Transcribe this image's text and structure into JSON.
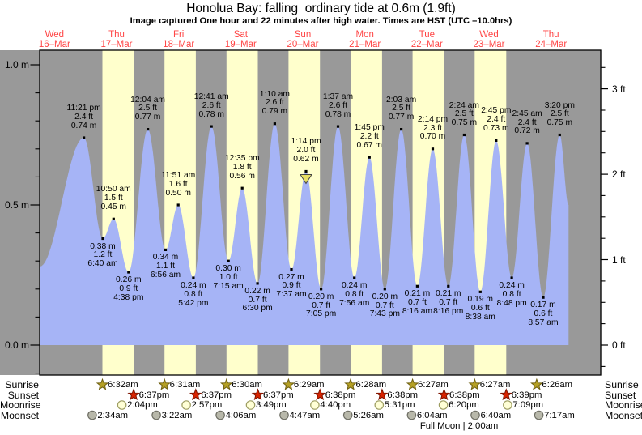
{
  "title": "Honolua Bay: falling  ordinary tide at 0.6m (1.9ft)",
  "subtitle": "Image captured One hour and 22 minutes after high water. Times are HST (UTC –10.0hrs)",
  "colors": {
    "night_band": "#999999",
    "daylight_band": "#ffffcc",
    "tide_fill": "#a6b4f6",
    "day_label": "#ff4646",
    "sunrise_star": "#b5a024",
    "sunrise_star_stroke": "#6e5f10",
    "sunset_star": "#d92300",
    "sunset_star_stroke": "#7c1400",
    "moonrise_circle": "#ffffd6",
    "moonrise_circle_stroke": "#9d9d62",
    "moonset_circle": "#b8b8aa",
    "moonset_circle_stroke": "#6f6f65",
    "marker_fill": "#e8df63"
  },
  "chart_data": {
    "type": "area",
    "title": "Honolua Bay: falling  ordinary tide at 0.6m (1.9ft)",
    "subtitle": "Image captured One hour and 22 minutes after high water. Times are HST (UTC –10.0hrs)",
    "y_axis_left": {
      "unit": "m",
      "labels": [
        "1.0 m",
        "0.5 m",
        "0.0 m"
      ],
      "values": [
        1.0,
        0.5,
        0.0
      ],
      "minor_step": 0.1
    },
    "y_axis_right": {
      "unit": "ft",
      "labels": [
        "3 ft",
        "2 ft",
        "1 ft",
        "0 ft"
      ],
      "values": [
        3,
        2,
        1,
        0
      ],
      "minor_step": 0.25
    },
    "grid": false,
    "days": [
      {
        "weekday": "Wed",
        "date": "16–Mar"
      },
      {
        "weekday": "Thu",
        "date": "17–Mar"
      },
      {
        "weekday": "Fri",
        "date": "18–Mar"
      },
      {
        "weekday": "Sat",
        "date": "19–Mar"
      },
      {
        "weekday": "Sun",
        "date": "20–Mar"
      },
      {
        "weekday": "Mon",
        "date": "21–Mar"
      },
      {
        "weekday": "Tue",
        "date": "22–Mar"
      },
      {
        "weekday": "Wed",
        "date": "23–Mar"
      },
      {
        "weekday": "Thu",
        "date": "24–Mar"
      }
    ],
    "tide_events": [
      {
        "type": "high",
        "day": 0,
        "time": "11:21 pm",
        "ft": "2.4 ft",
        "m": "0.74 m",
        "value_m": 0.74
      },
      {
        "type": "low",
        "day": 1,
        "time": "6:40 am",
        "ft": "1.2 ft",
        "m": "0.38 m",
        "value_m": 0.38
      },
      {
        "type": "high",
        "day": 1,
        "time": "10:50 am",
        "ft": "1.5 ft",
        "m": "0.45 m",
        "value_m": 0.45
      },
      {
        "type": "low",
        "day": 1,
        "time": "4:38 pm",
        "ft": "0.9 ft",
        "m": "0.26 m",
        "value_m": 0.26
      },
      {
        "type": "high",
        "day": 2,
        "time": "12:04 am",
        "ft": "2.5 ft",
        "m": "0.77 m",
        "value_m": 0.77
      },
      {
        "type": "low",
        "day": 2,
        "time": "6:56 am",
        "ft": "1.1 ft",
        "m": "0.34 m",
        "value_m": 0.34
      },
      {
        "type": "high",
        "day": 2,
        "time": "11:51 am",
        "ft": "1.6 ft",
        "m": "0.50 m",
        "value_m": 0.5
      },
      {
        "type": "low",
        "day": 2,
        "time": "5:42 pm",
        "ft": "0.8 ft",
        "m": "0.24 m",
        "value_m": 0.24
      },
      {
        "type": "high",
        "day": 3,
        "time": "12:41 am",
        "ft": "2.6 ft",
        "m": "0.78 m",
        "value_m": 0.78
      },
      {
        "type": "low",
        "day": 3,
        "time": "7:15 am",
        "ft": "1.0 ft",
        "m": "0.30 m",
        "value_m": 0.3
      },
      {
        "type": "high",
        "day": 3,
        "time": "12:35 pm",
        "ft": "1.8 ft",
        "m": "0.56 m",
        "value_m": 0.56
      },
      {
        "type": "low",
        "day": 3,
        "time": "6:30 pm",
        "ft": "0.7 ft",
        "m": "0.22 m",
        "value_m": 0.22
      },
      {
        "type": "high",
        "day": 4,
        "time": "1:10 am",
        "ft": "2.6 ft",
        "m": "0.79 m",
        "value_m": 0.79
      },
      {
        "type": "low",
        "day": 4,
        "time": "7:37 am",
        "ft": "0.9 ft",
        "m": "0.27 m",
        "value_m": 0.27
      },
      {
        "type": "high",
        "day": 4,
        "time": "1:14 pm",
        "ft": "2.0 ft",
        "m": "0.62 m",
        "value_m": 0.62
      },
      {
        "type": "low",
        "day": 4,
        "time": "7:05 pm",
        "ft": "0.7 ft",
        "m": "0.20 m",
        "value_m": 0.2
      },
      {
        "type": "high",
        "day": 5,
        "time": "1:37 am",
        "ft": "2.6 ft",
        "m": "0.78 m",
        "value_m": 0.78
      },
      {
        "type": "low",
        "day": 5,
        "time": "7:56 am",
        "ft": "0.8 ft",
        "m": "0.24 m",
        "value_m": 0.24
      },
      {
        "type": "high",
        "day": 5,
        "time": "1:45 pm",
        "ft": "2.2 ft",
        "m": "0.67 m",
        "value_m": 0.67
      },
      {
        "type": "low",
        "day": 5,
        "time": "7:43 pm",
        "ft": "0.7 ft",
        "m": "0.20 m",
        "value_m": 0.2
      },
      {
        "type": "high",
        "day": 6,
        "time": "2:03 am",
        "ft": "2.5 ft",
        "m": "0.77 m",
        "value_m": 0.77
      },
      {
        "type": "low",
        "day": 6,
        "time": "8:16 am",
        "ft": "0.7 ft",
        "m": "0.21 m",
        "value_m": 0.21
      },
      {
        "type": "high",
        "day": 6,
        "time": "2:14 pm",
        "ft": "2.3 ft",
        "m": "0.70 m",
        "value_m": 0.7
      },
      {
        "type": "low",
        "day": 6,
        "time": "8:16 pm",
        "ft": "0.7 ft",
        "m": "0.21 m",
        "value_m": 0.21
      },
      {
        "type": "high",
        "day": 7,
        "time": "2:24 am",
        "ft": "2.5 ft",
        "m": "0.75 m",
        "value_m": 0.75
      },
      {
        "type": "low",
        "day": 7,
        "time": "8:38 am",
        "ft": "0.6 ft",
        "m": "0.19 m",
        "value_m": 0.19
      },
      {
        "type": "high",
        "day": 7,
        "time": "2:45 pm",
        "ft": "2.4 ft",
        "m": "0.73 m",
        "value_m": 0.73
      },
      {
        "type": "low",
        "day": 7,
        "time": "8:48 pm",
        "ft": "0.8 ft",
        "m": "0.24 m",
        "value_m": 0.24
      },
      {
        "type": "high",
        "day": 8,
        "time": "2:45 am",
        "ft": "2.4 ft",
        "m": "0.72 m",
        "value_m": 0.72
      },
      {
        "type": "low",
        "day": 8,
        "time": "8:57 am",
        "ft": "0.6 ft",
        "m": "0.17 m",
        "value_m": 0.17
      },
      {
        "type": "high",
        "day": 8,
        "time": "3:20 pm",
        "ft": "2.5 ft",
        "m": "0.75 m",
        "value_m": 0.75
      }
    ],
    "current_marker": {
      "shape": "triangle-down",
      "high_index": 14
    },
    "sun_moon": {
      "rows": [
        {
          "label": "Sunrise",
          "kind": "sunrise",
          "events": [
            {
              "day": 1,
              "time": "6:32am"
            },
            {
              "day": 2,
              "time": "6:31am"
            },
            {
              "day": 3,
              "time": "6:30am"
            },
            {
              "day": 4,
              "time": "6:29am"
            },
            {
              "day": 5,
              "time": "6:28am"
            },
            {
              "day": 6,
              "time": "6:27am"
            },
            {
              "day": 7,
              "time": "6:27am"
            },
            {
              "day": 8,
              "time": "6:26am"
            }
          ]
        },
        {
          "label": "Sunset",
          "kind": "sunset",
          "events": [
            {
              "day": 1,
              "time": "6:37pm"
            },
            {
              "day": 2,
              "time": "6:37pm"
            },
            {
              "day": 3,
              "time": "6:37pm"
            },
            {
              "day": 4,
              "time": "6:38pm"
            },
            {
              "day": 5,
              "time": "6:38pm"
            },
            {
              "day": 6,
              "time": "6:38pm"
            },
            {
              "day": 7,
              "time": "6:39pm"
            }
          ]
        },
        {
          "label": "Moonrise",
          "kind": "moonrise",
          "events": [
            {
              "day": 1,
              "time": "2:04pm"
            },
            {
              "day": 2,
              "time": "2:57pm"
            },
            {
              "day": 3,
              "time": "3:49pm"
            },
            {
              "day": 4,
              "time": "4:40pm"
            },
            {
              "day": 5,
              "time": "5:31pm"
            },
            {
              "day": 6,
              "time": "6:20pm"
            },
            {
              "day": 7,
              "time": "7:09pm"
            }
          ]
        },
        {
          "label": "Moonset",
          "kind": "moonset",
          "events": [
            {
              "day": 1,
              "time": "2:34am"
            },
            {
              "day": 2,
              "time": "3:22am"
            },
            {
              "day": 3,
              "time": "4:06am"
            },
            {
              "day": 4,
              "time": "4:47am"
            },
            {
              "day": 5,
              "time": "5:26am"
            },
            {
              "day": 6,
              "time": "6:04am"
            },
            {
              "day": 7,
              "time": "6:40am"
            },
            {
              "day": 8,
              "time": "7:17am"
            }
          ]
        }
      ],
      "footnote": "Full Moon | 2:00am",
      "footnote_day": 7,
      "footnote_time": "2:00am"
    }
  }
}
